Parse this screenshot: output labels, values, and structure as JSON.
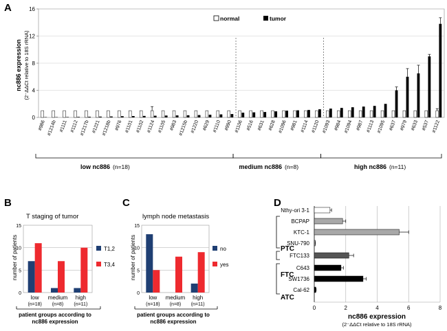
{
  "colors": {
    "normal": "#ffffff",
    "tumor": "#000000",
    "t12": "#1f3f73",
    "t34": "#ee2a2f",
    "no": "#1f3f73",
    "yes": "#ee2a2f",
    "grey_dark": "#555555",
    "grey_light": "#a8a8a8"
  },
  "chart_data": [
    {
      "panel": "A",
      "type": "bar",
      "title": "",
      "ylabel_main": "nc886 expression",
      "ylabel_sub": "(2⁻ΔΔCt relative to 18S rRNA)",
      "ylim": [
        0,
        16
      ],
      "yticks": [
        "0",
        "4",
        "8",
        "12",
        "16"
      ],
      "legend": [
        "normal",
        "tumor"
      ],
      "legend_position": "top-center",
      "categories": [
        "#986",
        "#1214b",
        "#1111",
        "#1112",
        "#1217b",
        "#1221",
        "#1218b",
        "#976",
        "#1101",
        "#1102",
        "#1124",
        "#1105",
        "#983",
        "#1215b",
        "#1220",
        "#629",
        "#1110",
        "#990",
        "#1106",
        "#516",
        "#631",
        "#628",
        "#1096",
        "#981",
        "#1114",
        "#1120",
        "#1093",
        "#984",
        "#1094",
        "#987",
        "#1113",
        "#1095",
        "#637",
        "#979",
        "#633",
        "#537",
        "#1122"
      ],
      "series": [
        {
          "name": "normal",
          "values": [
            1,
            1,
            1,
            1,
            1,
            1,
            1,
            1,
            1,
            1,
            1,
            1,
            1,
            1,
            1,
            1,
            1,
            1,
            1,
            1,
            1,
            1,
            1,
            1,
            1,
            1,
            1,
            1,
            1,
            1,
            1,
            1,
            1,
            1,
            1,
            1,
            1
          ]
        },
        {
          "name": "tumor",
          "values": [
            0.05,
            0.05,
            0.06,
            0.08,
            0.1,
            0.12,
            0.14,
            0.18,
            0.2,
            0.22,
            0.25,
            0.28,
            0.3,
            0.32,
            0.35,
            0.4,
            0.45,
            0.5,
            0.7,
            0.75,
            0.8,
            0.9,
            1.0,
            1.05,
            1.1,
            1.2,
            1.3,
            1.4,
            1.5,
            1.6,
            1.7,
            2.0,
            4.0,
            6.0,
            6.5,
            9.0,
            13.8
          ]
        }
      ],
      "error_bars": {
        "tumor_index": [
          32,
          33,
          34,
          35,
          36
        ],
        "tumor_err": [
          0.5,
          1.2,
          1.2,
          0.3,
          0.9
        ],
        "normal_index": [
          10,
          36
        ],
        "normal_err": [
          0.6,
          0.3
        ]
      },
      "groups": [
        {
          "label": "low nc886",
          "n": "(n=18)"
        },
        {
          "label": "medium nc886",
          "n": "(n=8)"
        },
        {
          "label": "high nc886",
          "n": "(n=11)"
        }
      ]
    },
    {
      "panel": "B",
      "type": "bar",
      "title": "T staging of tumor",
      "ylabel": "number of patients",
      "ylim": [
        0,
        15
      ],
      "yticks": [
        "0",
        "5",
        "10",
        "15"
      ],
      "categories": [
        "low",
        "medium",
        "high"
      ],
      "category_n": [
        "(n=18)",
        "(n=8)",
        "(n=11)"
      ],
      "series": [
        {
          "name": "T1,2",
          "values": [
            7,
            1,
            1
          ]
        },
        {
          "name": "T3,4",
          "values": [
            11,
            7,
            10
          ]
        }
      ],
      "xlabel": [
        "patient groups according to",
        "nc886 expression"
      ]
    },
    {
      "panel": "C",
      "type": "bar",
      "title": "lymph node metastasis",
      "ylabel": "number of patients",
      "ylim": [
        0,
        15
      ],
      "yticks": [
        "0",
        "5",
        "10",
        "15"
      ],
      "categories": [
        "low",
        "medium",
        "high"
      ],
      "category_n": [
        "(n=18)",
        "(n=8)",
        "(n=11)"
      ],
      "series": [
        {
          "name": "no",
          "values": [
            13,
            0,
            2
          ]
        },
        {
          "name": "yes",
          "values": [
            5,
            8,
            9
          ]
        }
      ],
      "xlabel": [
        "patient groups according to",
        "nc886 expression"
      ]
    },
    {
      "panel": "D",
      "type": "bar",
      "orientation": "horizontal",
      "xlabel": "nc886 expression",
      "xlabel_sub": "(2⁻ΔΔCt relative to 18S rRNA)",
      "xlim": [
        0,
        8
      ],
      "xticks": [
        "0",
        "2",
        "4",
        "6",
        "8"
      ],
      "categories": [
        "Nthy-ori 3-1",
        "BCPAP",
        "KTC-1",
        "SNU-790",
        "FTC133",
        "C643",
        "SW1736",
        "Cal-62"
      ],
      "values": [
        1.0,
        1.8,
        5.4,
        0.05,
        2.2,
        1.7,
        3.1,
        0.1
      ],
      "errors": [
        0.1,
        0.2,
        0.6,
        0.02,
        0.3,
        0.15,
        0.2,
        0.02
      ],
      "groups": [
        {
          "label": "PTC"
        },
        {
          "label": "FTC"
        },
        {
          "label": "ATC"
        }
      ]
    }
  ]
}
